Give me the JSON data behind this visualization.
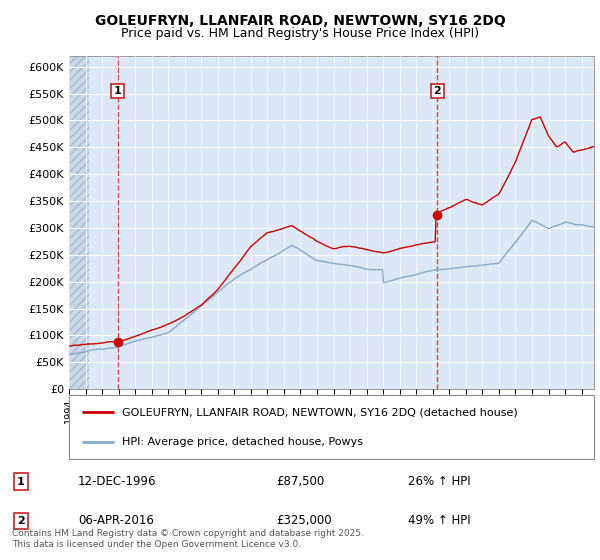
{
  "title1": "GOLEUFRYN, LLANFAIR ROAD, NEWTOWN, SY16 2DQ",
  "title2": "Price paid vs. HM Land Registry's House Price Index (HPI)",
  "ylabel_ticks": [
    "£0",
    "£50K",
    "£100K",
    "£150K",
    "£200K",
    "£250K",
    "£300K",
    "£350K",
    "£400K",
    "£450K",
    "£500K",
    "£550K",
    "£600K"
  ],
  "yticks": [
    0,
    50000,
    100000,
    150000,
    200000,
    250000,
    300000,
    350000,
    400000,
    450000,
    500000,
    550000,
    600000
  ],
  "ylim": [
    0,
    620000
  ],
  "xmin": 1994.0,
  "xmax": 2025.75,
  "marker1_x": 1996.95,
  "marker1_y": 87500,
  "marker2_x": 2016.27,
  "marker2_y": 325000,
  "vline1_x": 1996.95,
  "vline2_x": 2016.27,
  "red_line_color": "#cc0000",
  "blue_line_color": "#88aacc",
  "marker_color": "#cc0000",
  "legend_line1": "GOLEUFRYN, LLANFAIR ROAD, NEWTOWN, SY16 2DQ (detached house)",
  "legend_line2": "HPI: Average price, detached house, Powys",
  "annotation1_date": "12-DEC-1996",
  "annotation1_price": "£87,500",
  "annotation1_hpi": "26% ↑ HPI",
  "annotation2_date": "06-APR-2016",
  "annotation2_price": "£325,000",
  "annotation2_hpi": "49% ↑ HPI",
  "footer": "Contains HM Land Registry data © Crown copyright and database right 2025.\nThis data is licensed under the Open Government Licence v3.0.",
  "plot_bg_color": "#dce8f5",
  "hatch_area_color": "#c8d8e8"
}
